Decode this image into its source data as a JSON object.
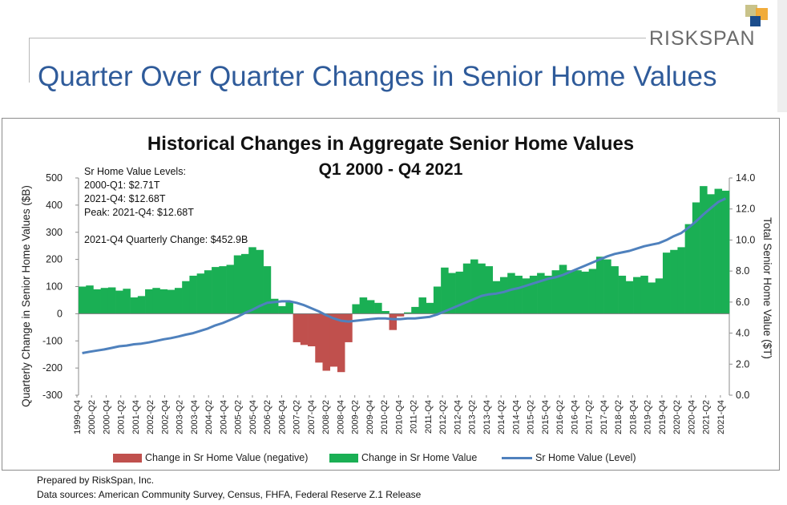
{
  "brand": {
    "name": "RISKSPAN",
    "colors": [
      "#c9c38a",
      "#f0a830",
      "#1b4d8c"
    ]
  },
  "slide_title": "Quarter Over Quarter Changes in Senior Home Values",
  "footer": {
    "line1": "Prepared by RiskSpan, Inc.",
    "line2": "Data sources: American Community Survey, Census, FHFA, Federal Reserve Z.1 Release"
  },
  "chart_data": {
    "type": "bar",
    "title": "Historical Changes in Aggregate Senior Home Values",
    "subtitle": "Q1 2000 - Q4 2021",
    "ylabel": "Quarterly Change in Senior Home Values ($B)",
    "y2label": "Total Senior Home Value ($T)",
    "ylim": [
      -300,
      500
    ],
    "y2lim": [
      0,
      14
    ],
    "yticks": [
      "500",
      "400",
      "300",
      "200",
      "100",
      "0",
      "-100",
      "-200",
      "-300"
    ],
    "y2ticks": [
      "14.0",
      "12.0",
      "10.0",
      "8.0",
      "6.0",
      "4.0",
      "2.0",
      "0.0"
    ],
    "annotations": [
      "Sr Home Value Levels:",
      "2000-Q1: $2.71T",
      "2021-Q4: $12.68T",
      "Peak: 2021-Q4: $12.68T",
      "2021-Q4 Quarterly Change: $452.9B"
    ],
    "legend": [
      {
        "label": "Change in Sr Home Value (negative)",
        "color": "#c0504d",
        "kind": "bar"
      },
      {
        "label": "Change in Sr Home Value",
        "color": "#1aaf54",
        "kind": "bar"
      },
      {
        "label": "Sr Home Value (Level)",
        "color": "#4f81bd",
        "kind": "line"
      }
    ],
    "x_tick_labels": [
      "1999-Q4",
      "2000-Q2",
      "2000-Q4",
      "2001-Q2",
      "2001-Q4",
      "2002-Q2",
      "2002-Q4",
      "2003-Q2",
      "2003-Q4",
      "2004-Q2",
      "2004-Q4",
      "2005-Q2",
      "2005-Q4",
      "2006-Q2",
      "2006-Q4",
      "2007-Q2",
      "2007-Q4",
      "2008-Q2",
      "2008-Q4",
      "2009-Q2",
      "2009-Q4",
      "2010-Q2",
      "2010-Q4",
      "2011-Q2",
      "2011-Q4",
      "2012-Q2",
      "2012-Q4",
      "2013-Q2",
      "2013-Q4",
      "2014-Q2",
      "2014-Q4",
      "2015-Q2",
      "2015-Q4",
      "2016-Q2",
      "2016-Q4",
      "2017-Q2",
      "2017-Q4",
      "2018-Q2",
      "2018-Q4",
      "2019-Q2",
      "2019-Q4",
      "2020-Q2",
      "2020-Q4",
      "2021-Q2",
      "2021-Q4"
    ],
    "quarters": [
      "2000-Q1",
      "2000-Q2",
      "2000-Q3",
      "2000-Q4",
      "2001-Q1",
      "2001-Q2",
      "2001-Q3",
      "2001-Q4",
      "2002-Q1",
      "2002-Q2",
      "2002-Q3",
      "2002-Q4",
      "2003-Q1",
      "2003-Q2",
      "2003-Q3",
      "2003-Q4",
      "2004-Q1",
      "2004-Q2",
      "2004-Q3",
      "2004-Q4",
      "2005-Q1",
      "2005-Q2",
      "2005-Q3",
      "2005-Q4",
      "2006-Q1",
      "2006-Q2",
      "2006-Q3",
      "2006-Q4",
      "2007-Q1",
      "2007-Q2",
      "2007-Q3",
      "2007-Q4",
      "2008-Q1",
      "2008-Q2",
      "2008-Q3",
      "2008-Q4",
      "2009-Q1",
      "2009-Q2",
      "2009-Q3",
      "2009-Q4",
      "2010-Q1",
      "2010-Q2",
      "2010-Q3",
      "2010-Q4",
      "2011-Q1",
      "2011-Q2",
      "2011-Q3",
      "2011-Q4",
      "2012-Q1",
      "2012-Q2",
      "2012-Q3",
      "2012-Q4",
      "2013-Q1",
      "2013-Q2",
      "2013-Q3",
      "2013-Q4",
      "2014-Q1",
      "2014-Q2",
      "2014-Q3",
      "2014-Q4",
      "2015-Q1",
      "2015-Q2",
      "2015-Q3",
      "2015-Q4",
      "2016-Q1",
      "2016-Q2",
      "2016-Q3",
      "2016-Q4",
      "2017-Q1",
      "2017-Q2",
      "2017-Q3",
      "2017-Q4",
      "2018-Q1",
      "2018-Q2",
      "2018-Q3",
      "2018-Q4",
      "2019-Q1",
      "2019-Q2",
      "2019-Q3",
      "2019-Q4",
      "2020-Q1",
      "2020-Q2",
      "2020-Q3",
      "2020-Q4",
      "2021-Q1",
      "2021-Q2",
      "2021-Q3",
      "2021-Q4"
    ],
    "series": [
      {
        "name": "Change in Sr Home Value",
        "axis": "left",
        "values": [
          100,
          104,
          90,
          95,
          97,
          85,
          92,
          60,
          65,
          90,
          95,
          90,
          88,
          95,
          120,
          140,
          148,
          160,
          172,
          175,
          180,
          215,
          220,
          245,
          235,
          175,
          55,
          28,
          45,
          -105,
          -115,
          -120,
          -180,
          -210,
          -195,
          -215,
          -105,
          35,
          60,
          50,
          40,
          10,
          -60,
          -10,
          5,
          25,
          60,
          40,
          100,
          170,
          150,
          155,
          185,
          200,
          185,
          175,
          120,
          135,
          150,
          140,
          130,
          140,
          150,
          140,
          160,
          180,
          160,
          160,
          155,
          165,
          210,
          200,
          175,
          140,
          120,
          135,
          140,
          115,
          130,
          225,
          235,
          245,
          330,
          410,
          470,
          440,
          460,
          453
        ]
      },
      {
        "name": "Sr Home Value (Level)",
        "axis": "right",
        "values": [
          2.71,
          2.8,
          2.88,
          2.95,
          3.05,
          3.15,
          3.2,
          3.28,
          3.32,
          3.4,
          3.5,
          3.6,
          3.68,
          3.78,
          3.9,
          4.0,
          4.15,
          4.3,
          4.5,
          4.65,
          4.85,
          5.05,
          5.3,
          5.5,
          5.75,
          5.95,
          6.0,
          6.05,
          6.05,
          5.95,
          5.8,
          5.6,
          5.4,
          5.15,
          4.95,
          4.8,
          4.75,
          4.8,
          4.85,
          4.9,
          4.95,
          4.95,
          4.9,
          4.9,
          4.95,
          4.95,
          5.0,
          5.05,
          5.2,
          5.4,
          5.6,
          5.8,
          6.0,
          6.2,
          6.4,
          6.5,
          6.55,
          6.65,
          6.8,
          6.9,
          7.05,
          7.2,
          7.35,
          7.5,
          7.6,
          7.75,
          7.95,
          8.15,
          8.35,
          8.55,
          8.75,
          8.95,
          9.1,
          9.2,
          9.3,
          9.45,
          9.6,
          9.7,
          9.8,
          10.0,
          10.25,
          10.45,
          10.8,
          11.2,
          11.65,
          12.05,
          12.45,
          12.68
        ]
      }
    ]
  }
}
